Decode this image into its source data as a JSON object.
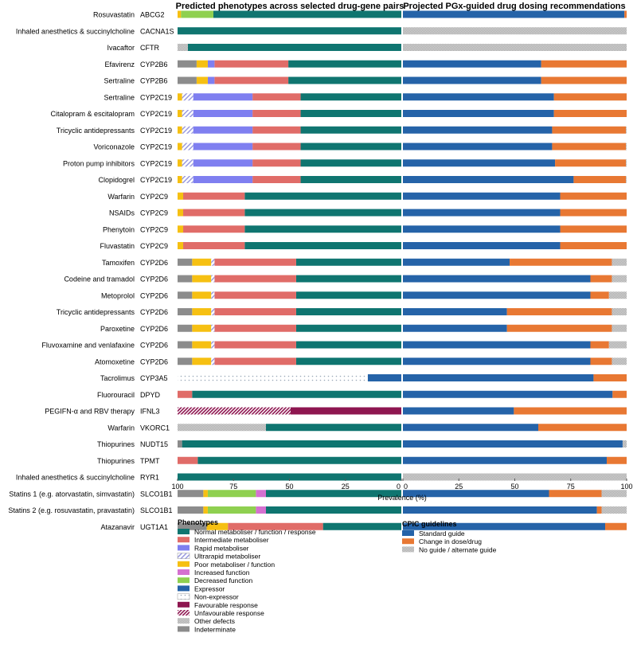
{
  "chart_data": [
    {
      "type": "bar",
      "orientation": "horizontal-stacked-reversed",
      "title": "Predicted phenotypes across selected drug-gene pairs",
      "xlabel": "Prevalence (%)",
      "xlim": [
        100,
        0
      ],
      "ticks": [
        "100",
        "75",
        "50",
        "25",
        "0"
      ],
      "legend_title": "Phenotypes",
      "legend": [
        {
          "key": "normal",
          "label": "Normal metaboliser / function / response",
          "color": "#0f7570"
        },
        {
          "key": "intermediate",
          "label": "Intermediate metaboliser",
          "color": "#e06c68"
        },
        {
          "key": "rapid",
          "label": "Rapid metaboliser",
          "color": "#7f7ff0"
        },
        {
          "key": "ultrarapid",
          "label": "Ultrarapid metaboliser",
          "color": "#9a9ae0"
        },
        {
          "key": "poor",
          "label": "Poor metaboliser / function",
          "color": "#f6c012"
        },
        {
          "key": "increased",
          "label": "Increased function",
          "color": "#d570d0"
        },
        {
          "key": "decreased",
          "label": "Decreased function",
          "color": "#8fd050"
        },
        {
          "key": "expressor",
          "label": "Expressor",
          "color": "#2563a8"
        },
        {
          "key": "nonexpressor",
          "label": "Non-expressor",
          "color": "#b8c4d0"
        },
        {
          "key": "favourable",
          "label": "Favourable response",
          "color": "#8e1650"
        },
        {
          "key": "unfavourable",
          "label": "Unfavourable response",
          "color": "#8e1650"
        },
        {
          "key": "other",
          "label": "Other defects",
          "color": "#b0b0b0"
        },
        {
          "key": "indeterminate",
          "label": "Indeterminate",
          "color": "#8c8c8c"
        }
      ]
    },
    {
      "type": "bar",
      "orientation": "horizontal-stacked",
      "title": "Projected PGx-guided drug dosing recommendations",
      "xlabel": "Prevalence (%)",
      "xlim": [
        0,
        100
      ],
      "ticks": [
        "0",
        "25",
        "50",
        "75",
        "100"
      ],
      "legend_title": "CPIC guidelines",
      "legend": [
        {
          "key": "standard",
          "label": "Standard guide",
          "color": "#2563a8"
        },
        {
          "key": "change",
          "label": "Change in dose/drug",
          "color": "#e87833"
        },
        {
          "key": "noguide",
          "label": "No guide / alternate guide",
          "color": "#b0b0b0"
        }
      ]
    }
  ],
  "rows": [
    {
      "drug": "Rosuvastatin",
      "gene": "ABCG2",
      "phen": {
        "normal": 84,
        "decreased": 14.5,
        "poor": 1.5
      },
      "cpic": {
        "standard": 99,
        "change": 1
      }
    },
    {
      "drug": "Inhaled anesthetics & succinylcholine",
      "gene": "CACNA1S",
      "phen": {
        "normal": 100
      },
      "cpic": {
        "noguide": 100
      }
    },
    {
      "drug": "Ivacaftor",
      "gene": "CFTR",
      "phen": {
        "normal": 95.4,
        "other": 4.6
      },
      "cpic": {
        "noguide": 100
      }
    },
    {
      "drug": "Efavirenz",
      "gene": "CYP2B6",
      "phen": {
        "normal": 50.5,
        "intermediate": 33,
        "rapid": 3,
        "poor": 5,
        "indeterminate": 8.5
      },
      "cpic": {
        "standard": 61.8,
        "change": 38.2
      }
    },
    {
      "drug": "Sertraline",
      "gene": "CYP2B6",
      "phen": {
        "normal": 50.5,
        "intermediate": 33,
        "rapid": 3,
        "poor": 5,
        "indeterminate": 8.5
      },
      "cpic": {
        "standard": 61.8,
        "change": 38.2
      }
    },
    {
      "drug": "Sertraline",
      "gene": "CYP2C19",
      "phen": {
        "normal": 45,
        "intermediate": 21.5,
        "rapid": 26.5,
        "ultrarapid": 5,
        "poor": 2
      },
      "cpic": {
        "standard": 67.5,
        "change": 32.5
      }
    },
    {
      "drug": "Citalopram & escitalopram",
      "gene": "CYP2C19",
      "phen": {
        "normal": 45,
        "intermediate": 21.5,
        "rapid": 26.5,
        "ultrarapid": 5,
        "poor": 2
      },
      "cpic": {
        "standard": 67.5,
        "change": 32.5
      }
    },
    {
      "drug": "Tricyclic antidepressants",
      "gene": "CYP2C19",
      "phen": {
        "normal": 45,
        "intermediate": 21.5,
        "rapid": 26.5,
        "ultrarapid": 5,
        "poor": 2
      },
      "cpic": {
        "standard": 66.7,
        "change": 33,
        "noguide": 0.3
      }
    },
    {
      "drug": "Voriconazole",
      "gene": "CYP2C19",
      "phen": {
        "normal": 45,
        "intermediate": 21.5,
        "rapid": 26.5,
        "ultrarapid": 5,
        "poor": 2
      },
      "cpic": {
        "standard": 66.7,
        "change": 33,
        "noguide": 0.3
      }
    },
    {
      "drug": "Proton pump inhibitors",
      "gene": "CYP2C19",
      "phen": {
        "normal": 45,
        "intermediate": 21.5,
        "rapid": 26.5,
        "ultrarapid": 5,
        "poor": 2
      },
      "cpic": {
        "standard": 68,
        "change": 31.7,
        "noguide": 0.3
      }
    },
    {
      "drug": "Clopidogrel",
      "gene": "CYP2C19",
      "phen": {
        "normal": 45,
        "intermediate": 21.5,
        "rapid": 26.5,
        "ultrarapid": 5,
        "poor": 2
      },
      "cpic": {
        "standard": 76.3,
        "change": 23.4,
        "noguide": 0.3
      }
    },
    {
      "drug": "Warfarin",
      "gene": "CYP2C9",
      "phen": {
        "normal": 70,
        "intermediate": 27.5,
        "poor": 2.5
      },
      "cpic": {
        "standard": 70.3,
        "change": 29.7
      }
    },
    {
      "drug": "NSAIDs",
      "gene": "CYP2C9",
      "phen": {
        "normal": 70,
        "intermediate": 27.5,
        "poor": 2.5
      },
      "cpic": {
        "standard": 70.3,
        "change": 29.7
      }
    },
    {
      "drug": "Phenytoin",
      "gene": "CYP2C9",
      "phen": {
        "normal": 70,
        "intermediate": 27.5,
        "poor": 2.5
      },
      "cpic": {
        "standard": 70.3,
        "change": 29.7
      }
    },
    {
      "drug": "Fluvastatin",
      "gene": "CYP2C9",
      "phen": {
        "normal": 70,
        "intermediate": 27.5,
        "poor": 2.5
      },
      "cpic": {
        "standard": 70.3,
        "change": 29.7
      }
    },
    {
      "drug": "Tamoxifen",
      "gene": "CYP2D6",
      "phen": {
        "normal": 47,
        "intermediate": 36.5,
        "ultrarapid": 1.5,
        "poor": 8.5,
        "indeterminate": 6.5
      },
      "cpic": {
        "standard": 47.7,
        "change": 45.7,
        "noguide": 6.6
      }
    },
    {
      "drug": "Codeine and tramadol",
      "gene": "CYP2D6",
      "phen": {
        "normal": 47,
        "intermediate": 36.5,
        "ultrarapid": 1.5,
        "poor": 8.5,
        "indeterminate": 6.5
      },
      "cpic": {
        "standard": 83.8,
        "change": 9.6,
        "noguide": 6.6
      }
    },
    {
      "drug": "Metoprolol",
      "gene": "CYP2D6",
      "phen": {
        "normal": 47,
        "intermediate": 36.5,
        "ultrarapid": 1.5,
        "poor": 8.5,
        "indeterminate": 6.5
      },
      "cpic": {
        "standard": 83.8,
        "change": 8.3,
        "noguide": 7.9
      }
    },
    {
      "drug": "Tricyclic antidepressants",
      "gene": "CYP2D6",
      "phen": {
        "normal": 47,
        "intermediate": 36.5,
        "ultrarapid": 1.5,
        "poor": 8.5,
        "indeterminate": 6.5
      },
      "cpic": {
        "standard": 46.5,
        "change": 46.9,
        "noguide": 6.6
      }
    },
    {
      "drug": "Paroxetine",
      "gene": "CYP2D6",
      "phen": {
        "normal": 47,
        "intermediate": 36.5,
        "ultrarapid": 1.5,
        "poor": 8.5,
        "indeterminate": 6.5
      },
      "cpic": {
        "standard": 46.5,
        "change": 46.9,
        "noguide": 6.6
      }
    },
    {
      "drug": "Fluvoxamine and venlafaxine",
      "gene": "CYP2D6",
      "phen": {
        "normal": 47,
        "intermediate": 36.5,
        "ultrarapid": 1.5,
        "poor": 8.5,
        "indeterminate": 6.5
      },
      "cpic": {
        "standard": 83.8,
        "change": 8.3,
        "noguide": 7.9
      }
    },
    {
      "drug": "Atomoxetine",
      "gene": "CYP2D6",
      "phen": {
        "normal": 47,
        "intermediate": 36.5,
        "ultrarapid": 1.5,
        "poor": 8.5,
        "indeterminate": 6.5
      },
      "cpic": {
        "standard": 83.8,
        "change": 9.6,
        "noguide": 6.6
      }
    },
    {
      "drug": "Tacrolimus",
      "gene": "CYP3A5",
      "phen": {
        "expressor": 15,
        "nonexpressor": 85
      },
      "cpic": {
        "standard": 85.2,
        "change": 14.8
      }
    },
    {
      "drug": "Fluorouracil",
      "gene": "DPYD",
      "phen": {
        "normal": 93.5,
        "intermediate": 6.5
      },
      "cpic": {
        "standard": 93.7,
        "change": 6.3
      }
    },
    {
      "drug": "PEGIFN-α and RBV therapy",
      "gene": "IFNL3",
      "phen": {
        "favourable": 49.5,
        "unfavourable": 50.5
      },
      "cpic": {
        "standard": 49.6,
        "change": 50.4
      }
    },
    {
      "drug": "Warfarin",
      "gene": "VKORC1",
      "phen": {
        "normal": 60.5,
        "other": 39.5
      },
      "cpic": {
        "standard": 60.5,
        "change": 39.5
      }
    },
    {
      "drug": "Thiopurines",
      "gene": "NUDT15",
      "phen": {
        "normal": 98,
        "indeterminate": 2
      },
      "cpic": {
        "standard": 98.2,
        "noguide": 1.8
      }
    },
    {
      "drug": "Thiopurines",
      "gene": "TPMT",
      "phen": {
        "normal": 91,
        "intermediate": 9
      },
      "cpic": {
        "standard": 91.1,
        "change": 8.9
      }
    },
    {
      "drug": "Inhaled anesthetics & succinylcholine",
      "gene": "RYR1",
      "phen": {
        "normal": 100
      },
      "cpic": {
        "noguide": 100
      }
    },
    {
      "drug": "Statins 1 (e.g. atorvastatin, simvastatin)",
      "gene": "SLCO1B1",
      "phen": {
        "normal": 60.5,
        "increased": 4.5,
        "decreased": 21.5,
        "poor": 2,
        "indeterminate": 11.5
      },
      "cpic": {
        "standard": 65.3,
        "change": 23.5,
        "noguide": 11.2
      }
    },
    {
      "drug": "Statins 2 (e.g. rosuvastatin,  pravastatin)",
      "gene": "SLCO1B1",
      "phen": {
        "normal": 60.5,
        "increased": 4.5,
        "decreased": 21.5,
        "poor": 2,
        "indeterminate": 11.5
      },
      "cpic": {
        "standard": 86.7,
        "change": 2.1,
        "noguide": 11.2
      }
    },
    {
      "drug": "Atazanavir",
      "gene": "UGT1A1",
      "phen": {
        "normal": 35,
        "intermediate": 42.5,
        "poor": 9.5,
        "indeterminate": 13
      },
      "cpic": {
        "standard": 90.4,
        "change": 9.6
      }
    }
  ]
}
